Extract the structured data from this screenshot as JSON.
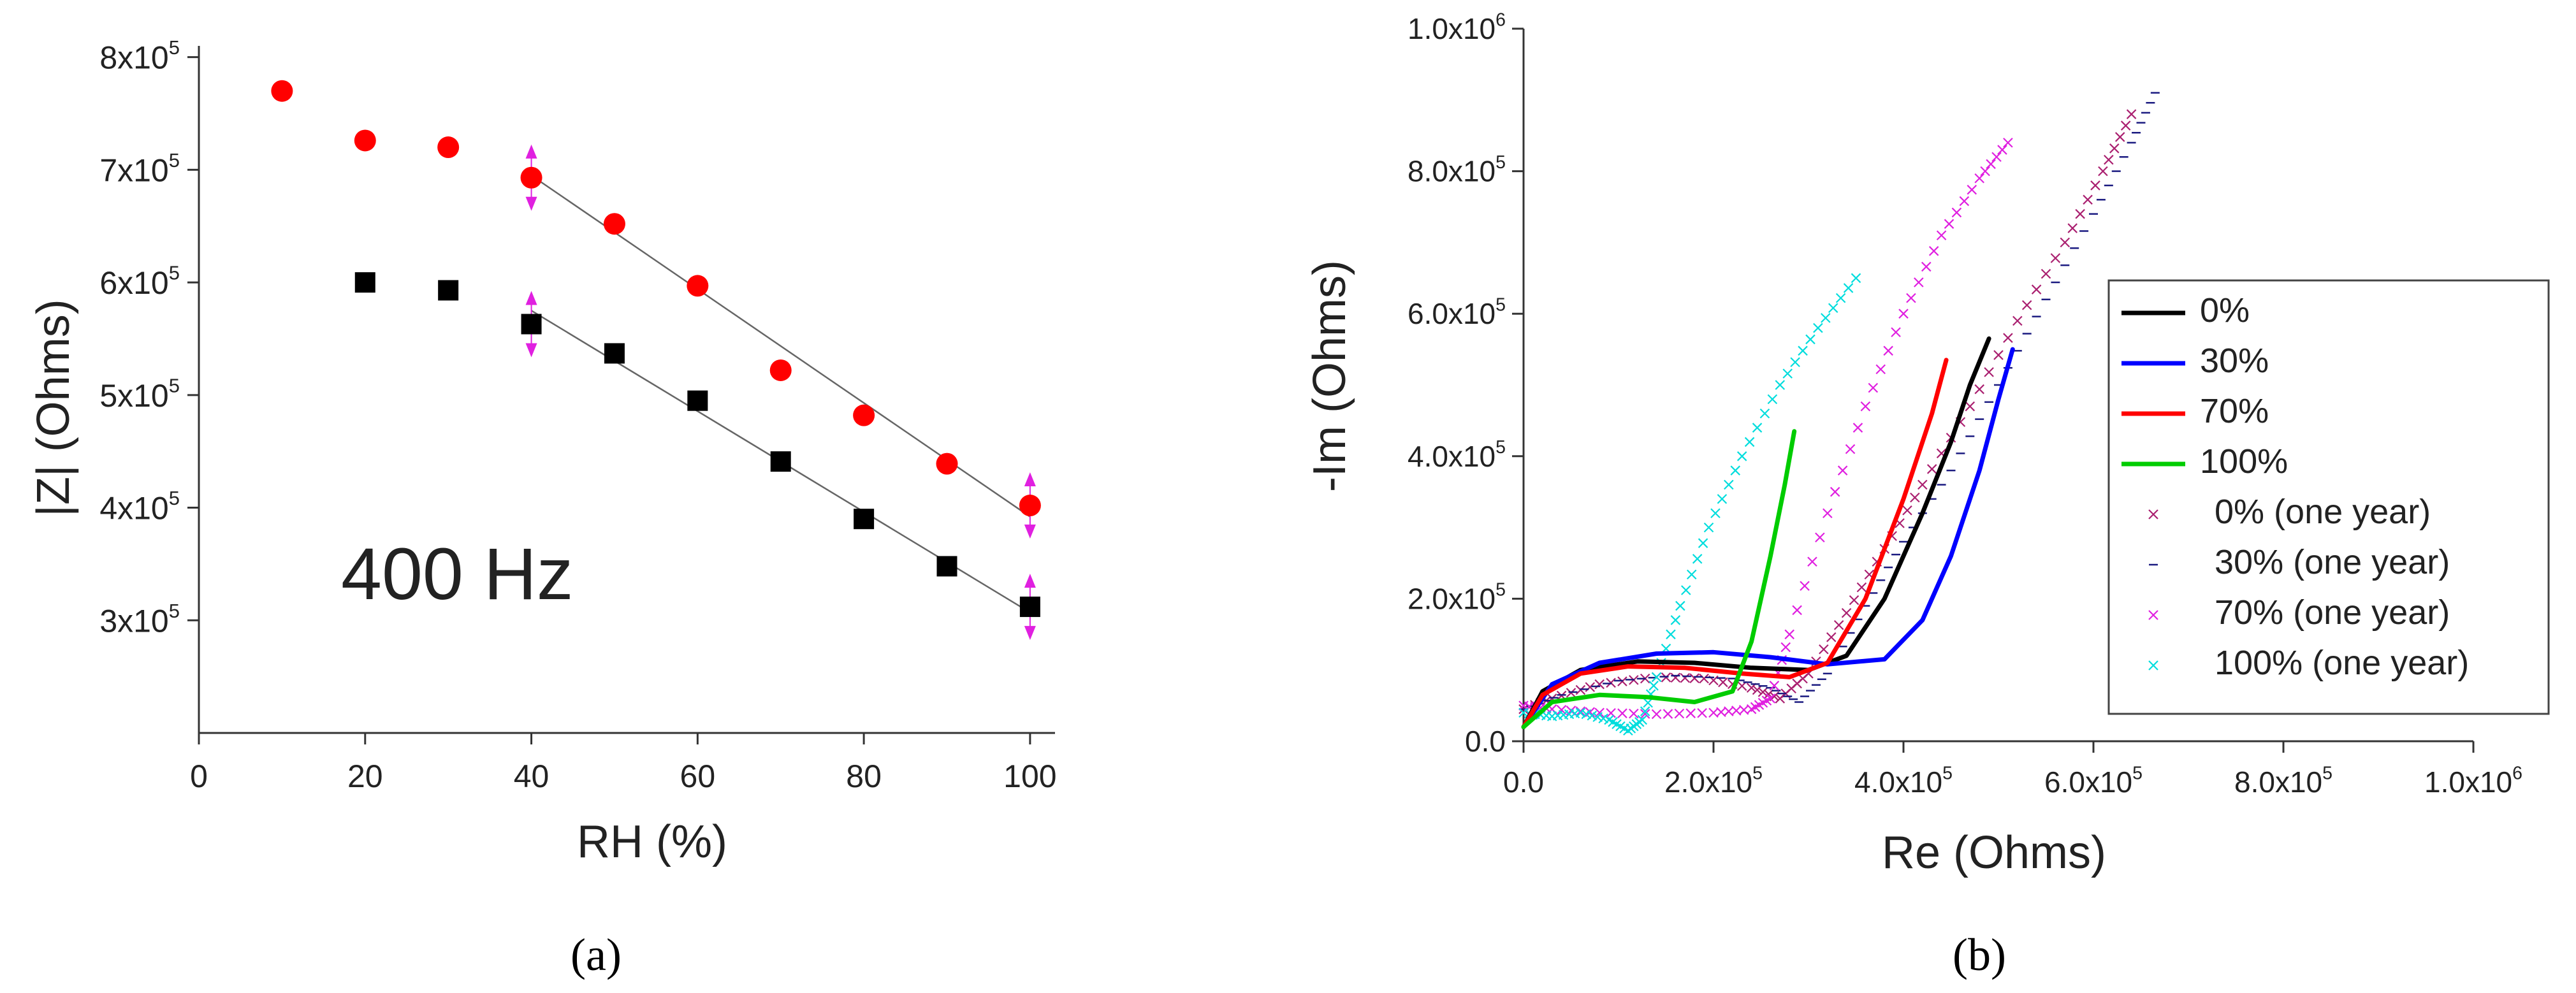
{
  "chart_data": [
    {
      "type": "scatter",
      "panel_label": "(a)",
      "annotation": "400 Hz",
      "xlabel": "RH (%)",
      "ylabel": "|Z| (Ohms)",
      "xlim": [
        0,
        103
      ],
      "ylim": [
        200000,
        810000
      ],
      "x_ticks": [
        0,
        20,
        40,
        60,
        80,
        100
      ],
      "x_tick_labels": [
        "0",
        "20",
        "40",
        "60",
        "80",
        "100"
      ],
      "y_ticks": [
        300000,
        400000,
        500000,
        600000,
        700000,
        800000
      ],
      "y_tick_labels": [
        {
          "base": "3x10",
          "exp": "5"
        },
        {
          "base": "4x10",
          "exp": "5"
        },
        {
          "base": "5x10",
          "exp": "5"
        },
        {
          "base": "6x10",
          "exp": "5"
        },
        {
          "base": "7x10",
          "exp": "5"
        },
        {
          "base": "8x10",
          "exp": "5"
        }
      ],
      "series": [
        {
          "name": "red circles",
          "color": "#ff0000",
          "marker": "circle",
          "x": [
            10,
            20,
            30,
            40,
            50,
            60,
            70,
            80,
            90,
            100
          ],
          "y": [
            770000,
            726000,
            720000,
            693000,
            652000,
            597000,
            522000,
            482000,
            439000,
            402000
          ],
          "fit": {
            "x": [
              40,
              100
            ],
            "y": [
              695000,
              392000
            ]
          }
        },
        {
          "name": "black squares",
          "color": "#000000",
          "marker": "square",
          "x": [
            20,
            30,
            40,
            50,
            60,
            70,
            80,
            90,
            100
          ],
          "y": [
            600000,
            593000,
            563000,
            537000,
            495000,
            441000,
            390000,
            348000,
            312000
          ],
          "fit": {
            "x": [
              40,
              100
            ],
            "y": [
              575000,
              307000
            ]
          }
        }
      ],
      "error_markers": [
        {
          "x": 40,
          "y": 693000
        },
        {
          "x": 40,
          "y": 563000
        },
        {
          "x": 100,
          "y": 402000
        },
        {
          "x": 100,
          "y": 312000
        }
      ],
      "error_marker_color": "#e020e0"
    },
    {
      "type": "line",
      "panel_label": "(b)",
      "xlabel": "Re (Ohms)",
      "ylabel": "-Im (Ohms)",
      "xlim": [
        0,
        1000000
      ],
      "ylim": [
        0,
        1000000
      ],
      "x_ticks": [
        0,
        200000,
        400000,
        600000,
        800000,
        1000000
      ],
      "x_tick_labels": [
        {
          "base": "0.0",
          "exp": ""
        },
        {
          "base": "2.0x10",
          "exp": "5"
        },
        {
          "base": "4.0x10",
          "exp": "5"
        },
        {
          "base": "6.0x10",
          "exp": "5"
        },
        {
          "base": "8.0x10",
          "exp": "5"
        },
        {
          "base": "1.0x10",
          "exp": "6"
        }
      ],
      "y_ticks": [
        0,
        200000,
        400000,
        600000,
        800000,
        1000000
      ],
      "y_tick_labels": [
        {
          "base": "0.0",
          "exp": ""
        },
        {
          "base": "2.0x10",
          "exp": "5"
        },
        {
          "base": "4.0x10",
          "exp": "5"
        },
        {
          "base": "6.0x10",
          "exp": "5"
        },
        {
          "base": "8.0x10",
          "exp": "5"
        },
        {
          "base": "1.0x10",
          "exp": "6"
        }
      ],
      "legend_position": "right",
      "series": [
        {
          "name": "0%",
          "color": "#000000",
          "style": "line",
          "x": [
            0,
            20000,
            60000,
            120000,
            180000,
            240000,
            300000,
            340000,
            380000,
            420000,
            450000,
            470000,
            490000
          ],
          "y": [
            20000,
            70000,
            100000,
            112000,
            110000,
            103000,
            100000,
            120000,
            200000,
            320000,
            420000,
            500000,
            565000
          ]
        },
        {
          "name": "30%",
          "color": "#0000ff",
          "style": "line",
          "x": [
            0,
            30000,
            80000,
            140000,
            200000,
            260000,
            320000,
            380000,
            420000,
            450000,
            480000,
            500000,
            515000
          ],
          "y": [
            20000,
            80000,
            110000,
            123000,
            125000,
            118000,
            108000,
            115000,
            170000,
            260000,
            380000,
            480000,
            550000
          ]
        },
        {
          "name": "70%",
          "color": "#ff0000",
          "style": "line",
          "x": [
            0,
            20000,
            60000,
            110000,
            170000,
            230000,
            280000,
            320000,
            360000,
            400000,
            430000,
            445000
          ],
          "y": [
            20000,
            65000,
            95000,
            105000,
            103000,
            95000,
            90000,
            110000,
            200000,
            340000,
            460000,
            535000
          ]
        },
        {
          "name": "100%",
          "color": "#00cc00",
          "style": "line",
          "x": [
            0,
            30000,
            80000,
            130000,
            180000,
            220000,
            240000,
            260000,
            275000,
            285000
          ],
          "y": [
            20000,
            55000,
            65000,
            62000,
            55000,
            70000,
            140000,
            260000,
            360000,
            435000
          ]
        },
        {
          "name": "0% (one year)",
          "color": "#aa2070",
          "style": "marker",
          "marker": "x",
          "x": [
            0,
            30000,
            80000,
            140000,
            190000,
            240000,
            270000,
            300000,
            340000,
            380000,
            420000,
            470000,
            520000,
            570000,
            610000,
            640000
          ],
          "y": [
            45000,
            60000,
            80000,
            90000,
            88000,
            75000,
            60000,
            95000,
            180000,
            270000,
            360000,
            470000,
            590000,
            700000,
            800000,
            880000
          ]
        },
        {
          "name": "30% (one year)",
          "color": "#1a1a80",
          "style": "marker",
          "marker": "dash",
          "x": [
            0,
            40000,
            100000,
            160000,
            220000,
            260000,
            290000,
            320000,
            360000,
            400000,
            450000,
            500000,
            550000,
            600000,
            640000,
            665000
          ],
          "y": [
            45000,
            65000,
            85000,
            92000,
            88000,
            75000,
            55000,
            95000,
            190000,
            280000,
            380000,
            500000,
            620000,
            740000,
            840000,
            910000
          ]
        },
        {
          "name": "70% (one year)",
          "color": "#e020e0",
          "style": "marker",
          "marker": "x",
          "x": [
            0,
            30000,
            80000,
            140000,
            200000,
            240000,
            260000,
            280000,
            320000,
            360000,
            400000,
            440000,
            480000,
            510000
          ],
          "y": [
            50000,
            45000,
            40000,
            38000,
            40000,
            45000,
            60000,
            150000,
            320000,
            470000,
            600000,
            710000,
            790000,
            840000
          ]
        },
        {
          "name": "100% (one year)",
          "color": "#00dddd",
          "style": "marker",
          "marker": "x",
          "x": [
            0,
            30000,
            60000,
            90000,
            110000,
            125000,
            140000,
            165000,
            195000,
            230000,
            270000,
            310000,
            350000
          ],
          "y": [
            40000,
            35000,
            40000,
            30000,
            15000,
            30000,
            90000,
            190000,
            300000,
            400000,
            500000,
            580000,
            650000
          ]
        }
      ]
    }
  ]
}
